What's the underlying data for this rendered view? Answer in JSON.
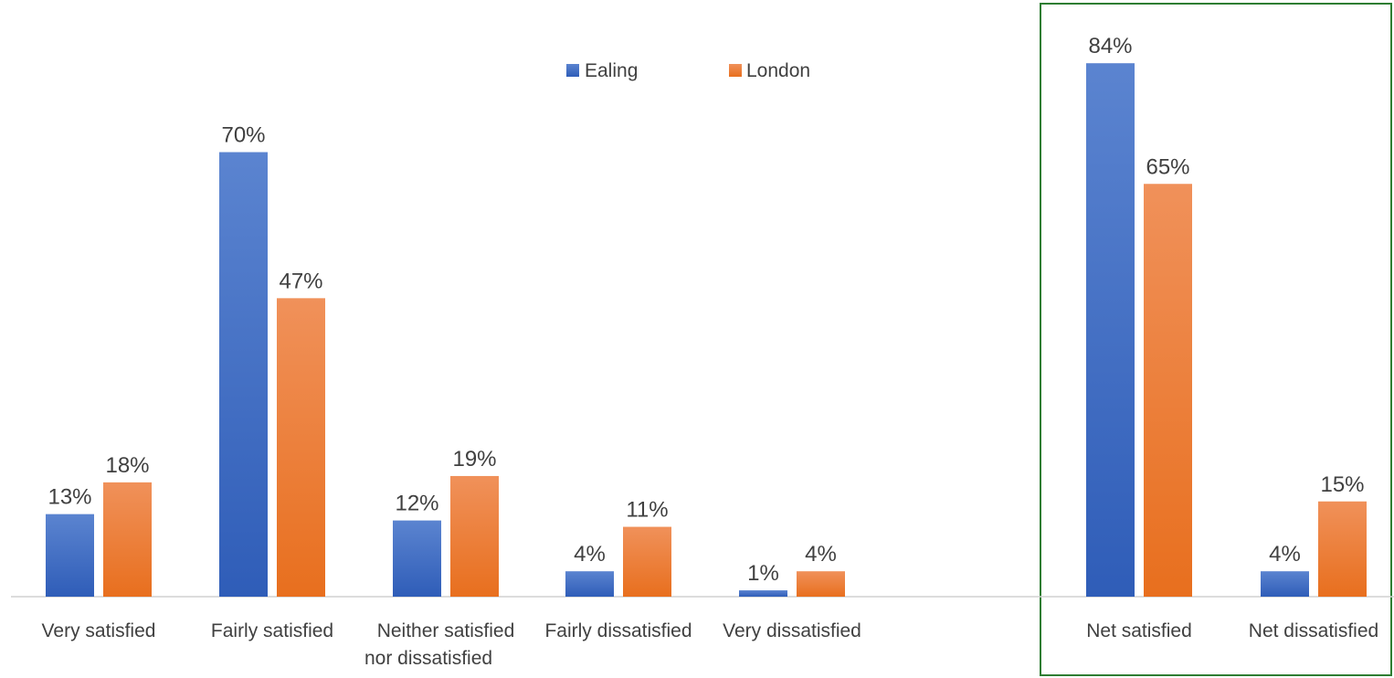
{
  "chart_data": {
    "type": "bar",
    "categories": [
      [
        "Very satisfied"
      ],
      [
        "Fairly satisfied"
      ],
      [
        "Neither satisfied",
        "nor dissatisfied"
      ],
      [
        "Fairly dissatisfied"
      ],
      [
        "Very dissatisfied"
      ],
      [
        "Net satisfied"
      ],
      [
        "Net dissatisfied"
      ]
    ],
    "series": [
      {
        "name": "Ealing",
        "values": [
          13,
          70,
          12,
          4,
          1,
          84,
          4
        ],
        "labels": [
          "13%",
          "70%",
          "12%",
          "4%",
          "1%",
          "84%",
          "4%"
        ],
        "color": "#4472C4"
      },
      {
        "name": "London",
        "values": [
          18,
          47,
          19,
          11,
          4,
          65,
          15
        ],
        "labels": [
          "18%",
          "47%",
          "19%",
          "11%",
          "4%",
          "65%",
          "15%"
        ],
        "color": "#ED7D31"
      }
    ],
    "ylim": [
      0,
      100
    ],
    "grid": false,
    "legend_position": "top-center",
    "highlight_box": {
      "categories": [
        "Net satisfied",
        "Net dissatisfied"
      ],
      "color": "#2E7D32"
    }
  }
}
